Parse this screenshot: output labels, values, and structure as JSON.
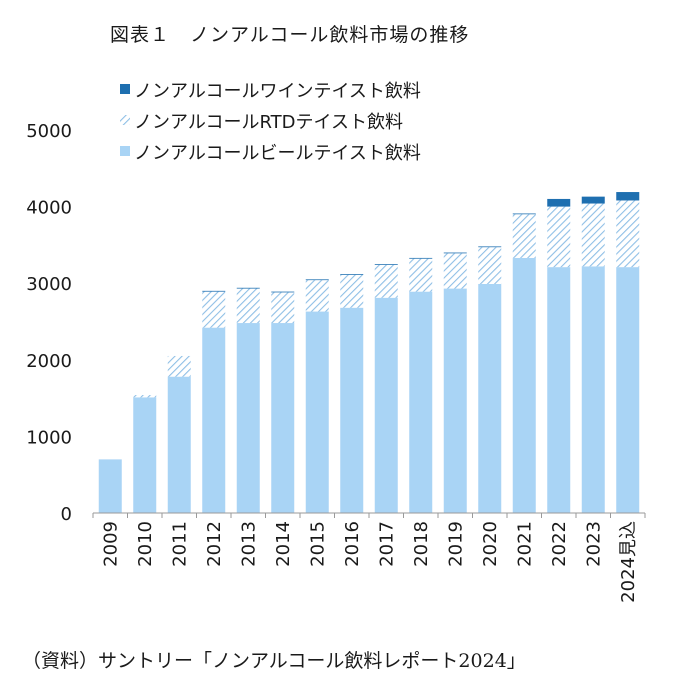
{
  "title": "図表１　ノンアルコール飲料市場の推移",
  "source": "（資料）サントリー「ノンアルコール飲料レポート2024」",
  "colors": {
    "beer": "#a9d4f5",
    "rtd_hatch": "#8fbfe6",
    "wine": "#1e6fb0"
  },
  "chart_data": {
    "type": "bar",
    "stacked": true,
    "categories": [
      "2009",
      "2010",
      "2011",
      "2012",
      "2013",
      "2014",
      "2015",
      "2016",
      "2017",
      "2018",
      "2019",
      "2020",
      "2021",
      "2022",
      "2023",
      "2024見込"
    ],
    "series": [
      {
        "name": "ノンアルコールビールテイスト飲料",
        "key": "beer",
        "values": [
          700,
          1510,
          1780,
          2420,
          2480,
          2480,
          2630,
          2680,
          2810,
          2890,
          2930,
          2990,
          3330,
          3210,
          3220,
          3210
        ]
      },
      {
        "name": "ノンアルコールRTDテイスト飲料",
        "key": "rtd",
        "values": [
          0,
          30,
          270,
          470,
          450,
          400,
          410,
          430,
          430,
          430,
          460,
          480,
          570,
          790,
          820,
          870
        ]
      },
      {
        "name": "ノンアルコールワインテイスト飲料",
        "key": "wine",
        "values": [
          0,
          0,
          0,
          10,
          10,
          10,
          10,
          10,
          10,
          10,
          10,
          10,
          10,
          100,
          90,
          110
        ]
      }
    ],
    "legend_order": [
      "wine",
      "rtd",
      "beer"
    ],
    "legend_position": "top-left",
    "ylim": [
      0,
      5000
    ],
    "yticks": [
      0,
      1000,
      2000,
      3000,
      4000,
      5000
    ],
    "grid": false
  }
}
